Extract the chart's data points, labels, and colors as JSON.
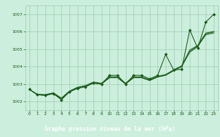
{
  "title": "Graphe pression niveau de la mer (hPa)",
  "bg_color": "#cceedd",
  "plot_bg_color": "#cceedd",
  "label_bg_color": "#1a6b2a",
  "label_text_color": "#ffffff",
  "grid_color": "#99ccaa",
  "line_color": "#1a5c1a",
  "marker_color": "#1a5c1a",
  "xlim": [
    -0.5,
    23.5
  ],
  "ylim": [
    1001.5,
    1007.5
  ],
  "yticks": [
    1002,
    1003,
    1004,
    1005,
    1006,
    1007
  ],
  "xticks": [
    0,
    1,
    2,
    3,
    4,
    5,
    6,
    7,
    8,
    9,
    10,
    11,
    12,
    13,
    14,
    15,
    16,
    17,
    18,
    19,
    20,
    21,
    22,
    23
  ],
  "series_main": [
    1002.7,
    1002.4,
    1002.35,
    1002.45,
    1002.1,
    1002.55,
    1002.75,
    1002.85,
    1003.05,
    1003.0,
    1003.5,
    1003.5,
    1003.0,
    1003.5,
    1003.5,
    1003.3,
    1003.5,
    1004.7,
    1003.8,
    1003.85,
    1006.1,
    1005.05,
    1006.55,
    1007.0
  ],
  "series_smooth1": [
    1002.7,
    1002.42,
    1002.4,
    1002.5,
    1002.2,
    1002.6,
    1002.82,
    1002.92,
    1003.12,
    1003.05,
    1003.42,
    1003.42,
    1003.05,
    1003.42,
    1003.42,
    1003.25,
    1003.45,
    1003.55,
    1003.82,
    1004.05,
    1004.95,
    1005.22,
    1005.92,
    1006.02
  ],
  "series_smooth2": [
    1002.7,
    1002.4,
    1002.38,
    1002.48,
    1002.18,
    1002.58,
    1002.78,
    1002.88,
    1003.08,
    1003.02,
    1003.38,
    1003.38,
    1003.02,
    1003.38,
    1003.38,
    1003.22,
    1003.42,
    1003.52,
    1003.78,
    1004.02,
    1004.88,
    1005.18,
    1005.88,
    1005.98
  ],
  "series_smooth3": [
    1002.7,
    1002.38,
    1002.36,
    1002.46,
    1002.16,
    1002.56,
    1002.76,
    1002.86,
    1003.06,
    1003.0,
    1003.36,
    1003.36,
    1003.0,
    1003.36,
    1003.36,
    1003.2,
    1003.4,
    1003.5,
    1003.76,
    1004.0,
    1004.82,
    1005.15,
    1005.82,
    1005.92
  ]
}
